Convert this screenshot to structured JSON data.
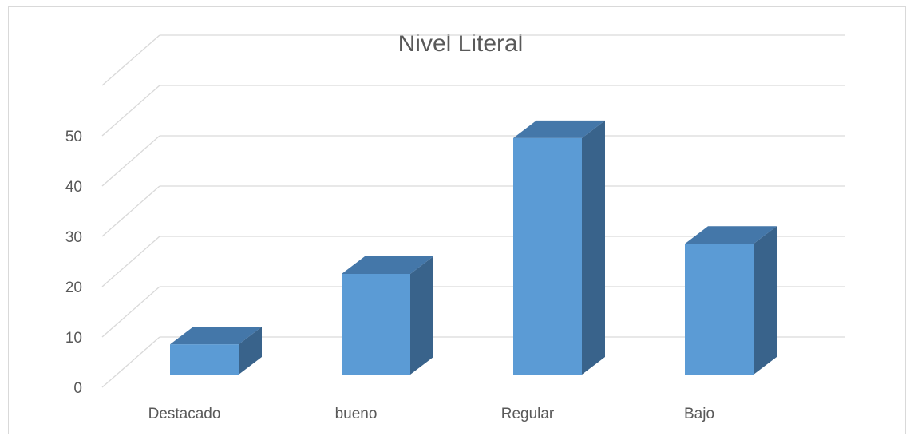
{
  "chart_data": {
    "type": "bar",
    "style": "3d-column",
    "title": "Nivel Literal",
    "xlabel": "",
    "ylabel": "",
    "categories": [
      "Destacado",
      "bueno",
      "Regular",
      "Bajo"
    ],
    "values": [
      6,
      20,
      47,
      26
    ],
    "ylim": [
      0,
      60
    ],
    "yticks": [
      0,
      10,
      20,
      30,
      40,
      50
    ],
    "grid": true,
    "legend": "none",
    "colors": {
      "bar_front": "#5b9bd5",
      "bar_top": "#4477a9",
      "bar_side": "#39638b",
      "gridline": "#d9d9d9",
      "text": "#595959"
    }
  }
}
